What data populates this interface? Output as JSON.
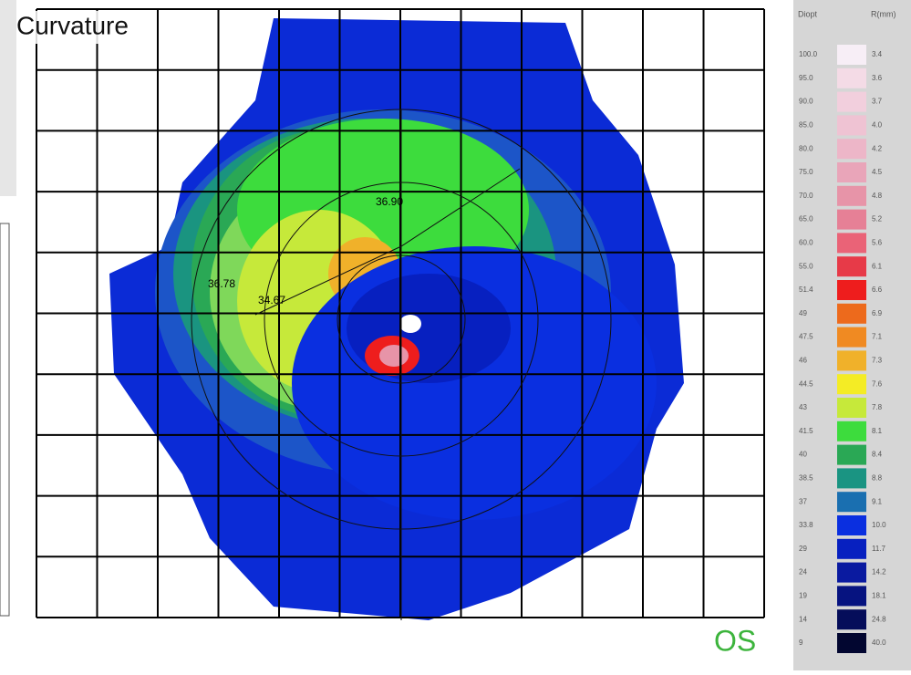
{
  "title": "Curvature",
  "eye": "OS",
  "map_labels": [
    "36.90",
    "36.78",
    "34.67"
  ],
  "legend": {
    "headers": [
      "Diopt",
      "R(mm)"
    ],
    "rows": [
      {
        "d": "100.0",
        "r": "3.4",
        "color": "#f7eef6"
      },
      {
        "d": "95.0",
        "r": "3.6",
        "color": "#f4dbe6"
      },
      {
        "d": "90.0",
        "r": "3.7",
        "color": "#f2cfdd"
      },
      {
        "d": "85.0",
        "r": "4.0",
        "color": "#efc3d3"
      },
      {
        "d": "80.0",
        "r": "4.2",
        "color": "#edb6c8"
      },
      {
        "d": "75.0",
        "r": "4.5",
        "color": "#e9a5b9"
      },
      {
        "d": "70.0",
        "r": "4.8",
        "color": "#e794a8"
      },
      {
        "d": "65.0",
        "r": "5.2",
        "color": "#e68096"
      },
      {
        "d": "60.0",
        "r": "5.6",
        "color": "#ea6377"
      },
      {
        "d": "55.0",
        "r": "6.1",
        "color": "#e73a48"
      },
      {
        "d": "51.4",
        "r": "6.6",
        "color": "#ee1d1d"
      },
      {
        "d": "49",
        "r": "6.9",
        "color": "#ed6a1c"
      },
      {
        "d": "47.5",
        "r": "7.1",
        "color": "#f08a22"
      },
      {
        "d": "46",
        "r": "7.3",
        "color": "#f0b12a"
      },
      {
        "d": "44.5",
        "r": "7.6",
        "color": "#f4ec25"
      },
      {
        "d": "43",
        "r": "7.8",
        "color": "#c6e93a"
      },
      {
        "d": "41.5",
        "r": "8.1",
        "color": "#3ddc3d"
      },
      {
        "d": "40",
        "r": "8.4",
        "color": "#2aa855"
      },
      {
        "d": "38.5",
        "r": "8.8",
        "color": "#1a9482"
      },
      {
        "d": "37",
        "r": "9.1",
        "color": "#1a6fb0"
      },
      {
        "d": "33.8",
        "r": "10.0",
        "color": "#0a2fe0"
      },
      {
        "d": "29",
        "r": "11.7",
        "color": "#0720c0"
      },
      {
        "d": "24",
        "r": "14.2",
        "color": "#0a1aa0"
      },
      {
        "d": "19",
        "r": "18.1",
        "color": "#061380"
      },
      {
        "d": "14",
        "r": "24.8",
        "color": "#050d5a"
      },
      {
        "d": "9",
        "r": "40.0",
        "color": "#020630"
      }
    ]
  }
}
